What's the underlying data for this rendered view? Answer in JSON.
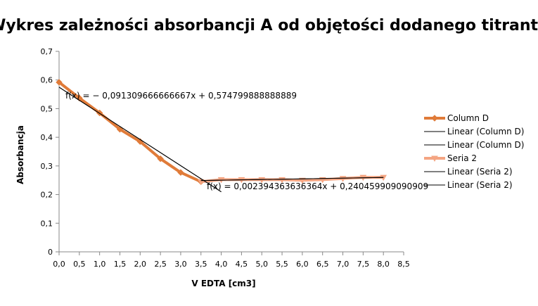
{
  "chart_data": {
    "type": "line",
    "title": "Wykres zależności absorbancji A od objętości dodanego titranta",
    "xlabel": "V EDTA [cm3]",
    "ylabel": "Absorbancja",
    "xlim": [
      0,
      8.5
    ],
    "ylim": [
      0,
      0.7
    ],
    "x_ticks": [
      "0,0",
      "0,5",
      "1,0",
      "1,5",
      "2,0",
      "2,5",
      "3,0",
      "3,5",
      "4,0",
      "4,5",
      "5,0",
      "5,5",
      "6,0",
      "6,5",
      "7,0",
      "7,5",
      "8,0",
      "8,5"
    ],
    "y_ticks": [
      "0",
      "0,1",
      "0,2",
      "0,3",
      "0,4",
      "0,5",
      "0,6",
      "0,7"
    ],
    "grid": false,
    "legend_placement": "right",
    "series": [
      {
        "name": "Column D",
        "color": "#e07b39",
        "marker": "diamond",
        "x": [
          0.0,
          0.5,
          1.0,
          1.5,
          2.0,
          2.5,
          3.0,
          3.5
        ],
        "y": [
          0.592,
          0.537,
          0.485,
          0.428,
          0.385,
          0.325,
          0.277,
          0.245
        ]
      },
      {
        "name": "Seria 2",
        "color": "#f4a582",
        "marker": "triangle-down",
        "x": [
          3.5,
          4.0,
          4.5,
          5.0,
          5.5,
          6.0,
          6.5,
          7.0,
          7.5,
          8.0
        ],
        "y": [
          0.245,
          0.252,
          0.252,
          0.252,
          0.252,
          0.25,
          0.252,
          0.256,
          0.26,
          0.26
        ]
      }
    ],
    "trendlines": [
      {
        "name": "Linear (Column D)",
        "color": "#000000",
        "slope": -0.091309666666667,
        "intercept": 0.574799888888889,
        "x_range": [
          0,
          4.0
        ],
        "equation": "f(x) = − 0,091309666666667x + 0,574799888888889"
      },
      {
        "name": "Linear (Column D)",
        "color": "#000000",
        "slope": -0.091309666666667,
        "intercept": 0.574799888888889,
        "x_range": [
          0,
          4.0
        ],
        "equation": ""
      },
      {
        "name": "Linear (Seria 2)",
        "color": "#000000",
        "slope": 0.002394363636364,
        "intercept": 0.240459909090909,
        "x_range": [
          3.5,
          8.0
        ],
        "equation": "f(x) = 0,002394363636364x + 0,240459909090909"
      },
      {
        "name": "Linear (Seria 2)",
        "color": "#000000",
        "slope": 0.002394363636364,
        "intercept": 0.240459909090909,
        "x_range": [
          3.5,
          8.0
        ],
        "equation": ""
      }
    ],
    "legend": [
      {
        "label": "Column D",
        "kind": "series",
        "color": "#e07b39",
        "marker": "diamond"
      },
      {
        "label": "Linear (Column D)",
        "kind": "line",
        "color": "#000000"
      },
      {
        "label": "Linear (Column D)",
        "kind": "line",
        "color": "#000000"
      },
      {
        "label": "Seria 2",
        "kind": "series",
        "color": "#f4a582",
        "marker": "triangle-down"
      },
      {
        "label": "Linear (Seria 2)",
        "kind": "line",
        "color": "#000000"
      },
      {
        "label": "Linear (Seria 2)",
        "kind": "line",
        "color": "#000000"
      }
    ]
  }
}
